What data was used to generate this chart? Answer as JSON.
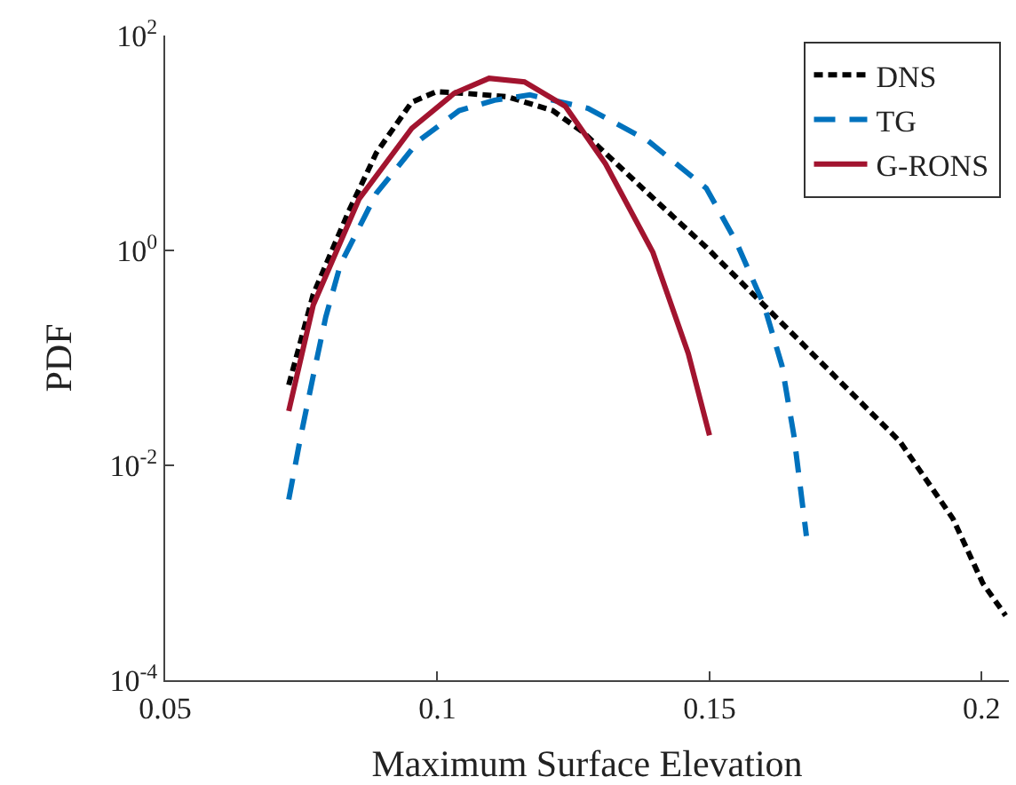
{
  "chart_data": {
    "type": "line",
    "xlabel": "Maximum Surface Elevation",
    "ylabel": "PDF",
    "log": "y",
    "xlim": [
      0.05,
      0.205
    ],
    "xticks": [
      0.05,
      0.1,
      0.15,
      0.2
    ],
    "ylim": [
      0.0001,
      100
    ],
    "yticks": [
      {
        "value": 100,
        "label": "10$^{2}$"
      },
      {
        "value": 1,
        "label": "10$^{0}$"
      },
      {
        "value": 0.01,
        "label": "10$^{-2}$"
      },
      {
        "value": 0.0001,
        "label": "10$^{-4}$"
      }
    ],
    "legend": "top right",
    "series": [
      {
        "name": "DNS",
        "color": "#000000",
        "line_style": "dotted",
        "x": [
          0.0727,
          0.0749,
          0.0772,
          0.0837,
          0.0888,
          0.0953,
          0.0998,
          0.105,
          0.1128,
          0.1212,
          0.1267,
          0.1387,
          0.1494,
          0.16,
          0.172,
          0.185,
          0.1947,
          0.2002,
          0.2044
        ],
        "values": [
          0.056,
          0.144,
          0.39,
          2.3,
          8.1,
          24,
          30,
          29,
          27,
          20,
          12.7,
          3.4,
          1.07,
          0.31,
          0.076,
          0.0166,
          0.0032,
          0.0008,
          0.0004
        ]
      },
      {
        "name": "TG",
        "color": "#0072bd",
        "line_style": "dashed",
        "x": [
          0.0727,
          0.0749,
          0.0772,
          0.0795,
          0.0822,
          0.0888,
          0.0966,
          0.104,
          0.1105,
          0.117,
          0.1277,
          0.1387,
          0.1494,
          0.1549,
          0.16,
          0.1633,
          0.1655,
          0.1678
        ],
        "values": [
          0.0048,
          0.0186,
          0.068,
          0.24,
          0.74,
          3.4,
          10.5,
          20,
          25,
          28,
          21,
          10.5,
          3.8,
          1.2,
          0.31,
          0.085,
          0.019,
          0.0022
        ]
      },
      {
        "name": "G-RONS",
        "color": "#a2142f",
        "line_style": "solid",
        "x": [
          0.0727,
          0.0772,
          0.0856,
          0.0953,
          0.1031,
          0.1095,
          0.116,
          0.1235,
          0.1309,
          0.1396,
          0.1461,
          0.15
        ],
        "values": [
          0.032,
          0.31,
          3.0,
          13.7,
          29,
          40,
          37,
          22,
          6.4,
          0.96,
          0.11,
          0.019
        ]
      }
    ]
  }
}
